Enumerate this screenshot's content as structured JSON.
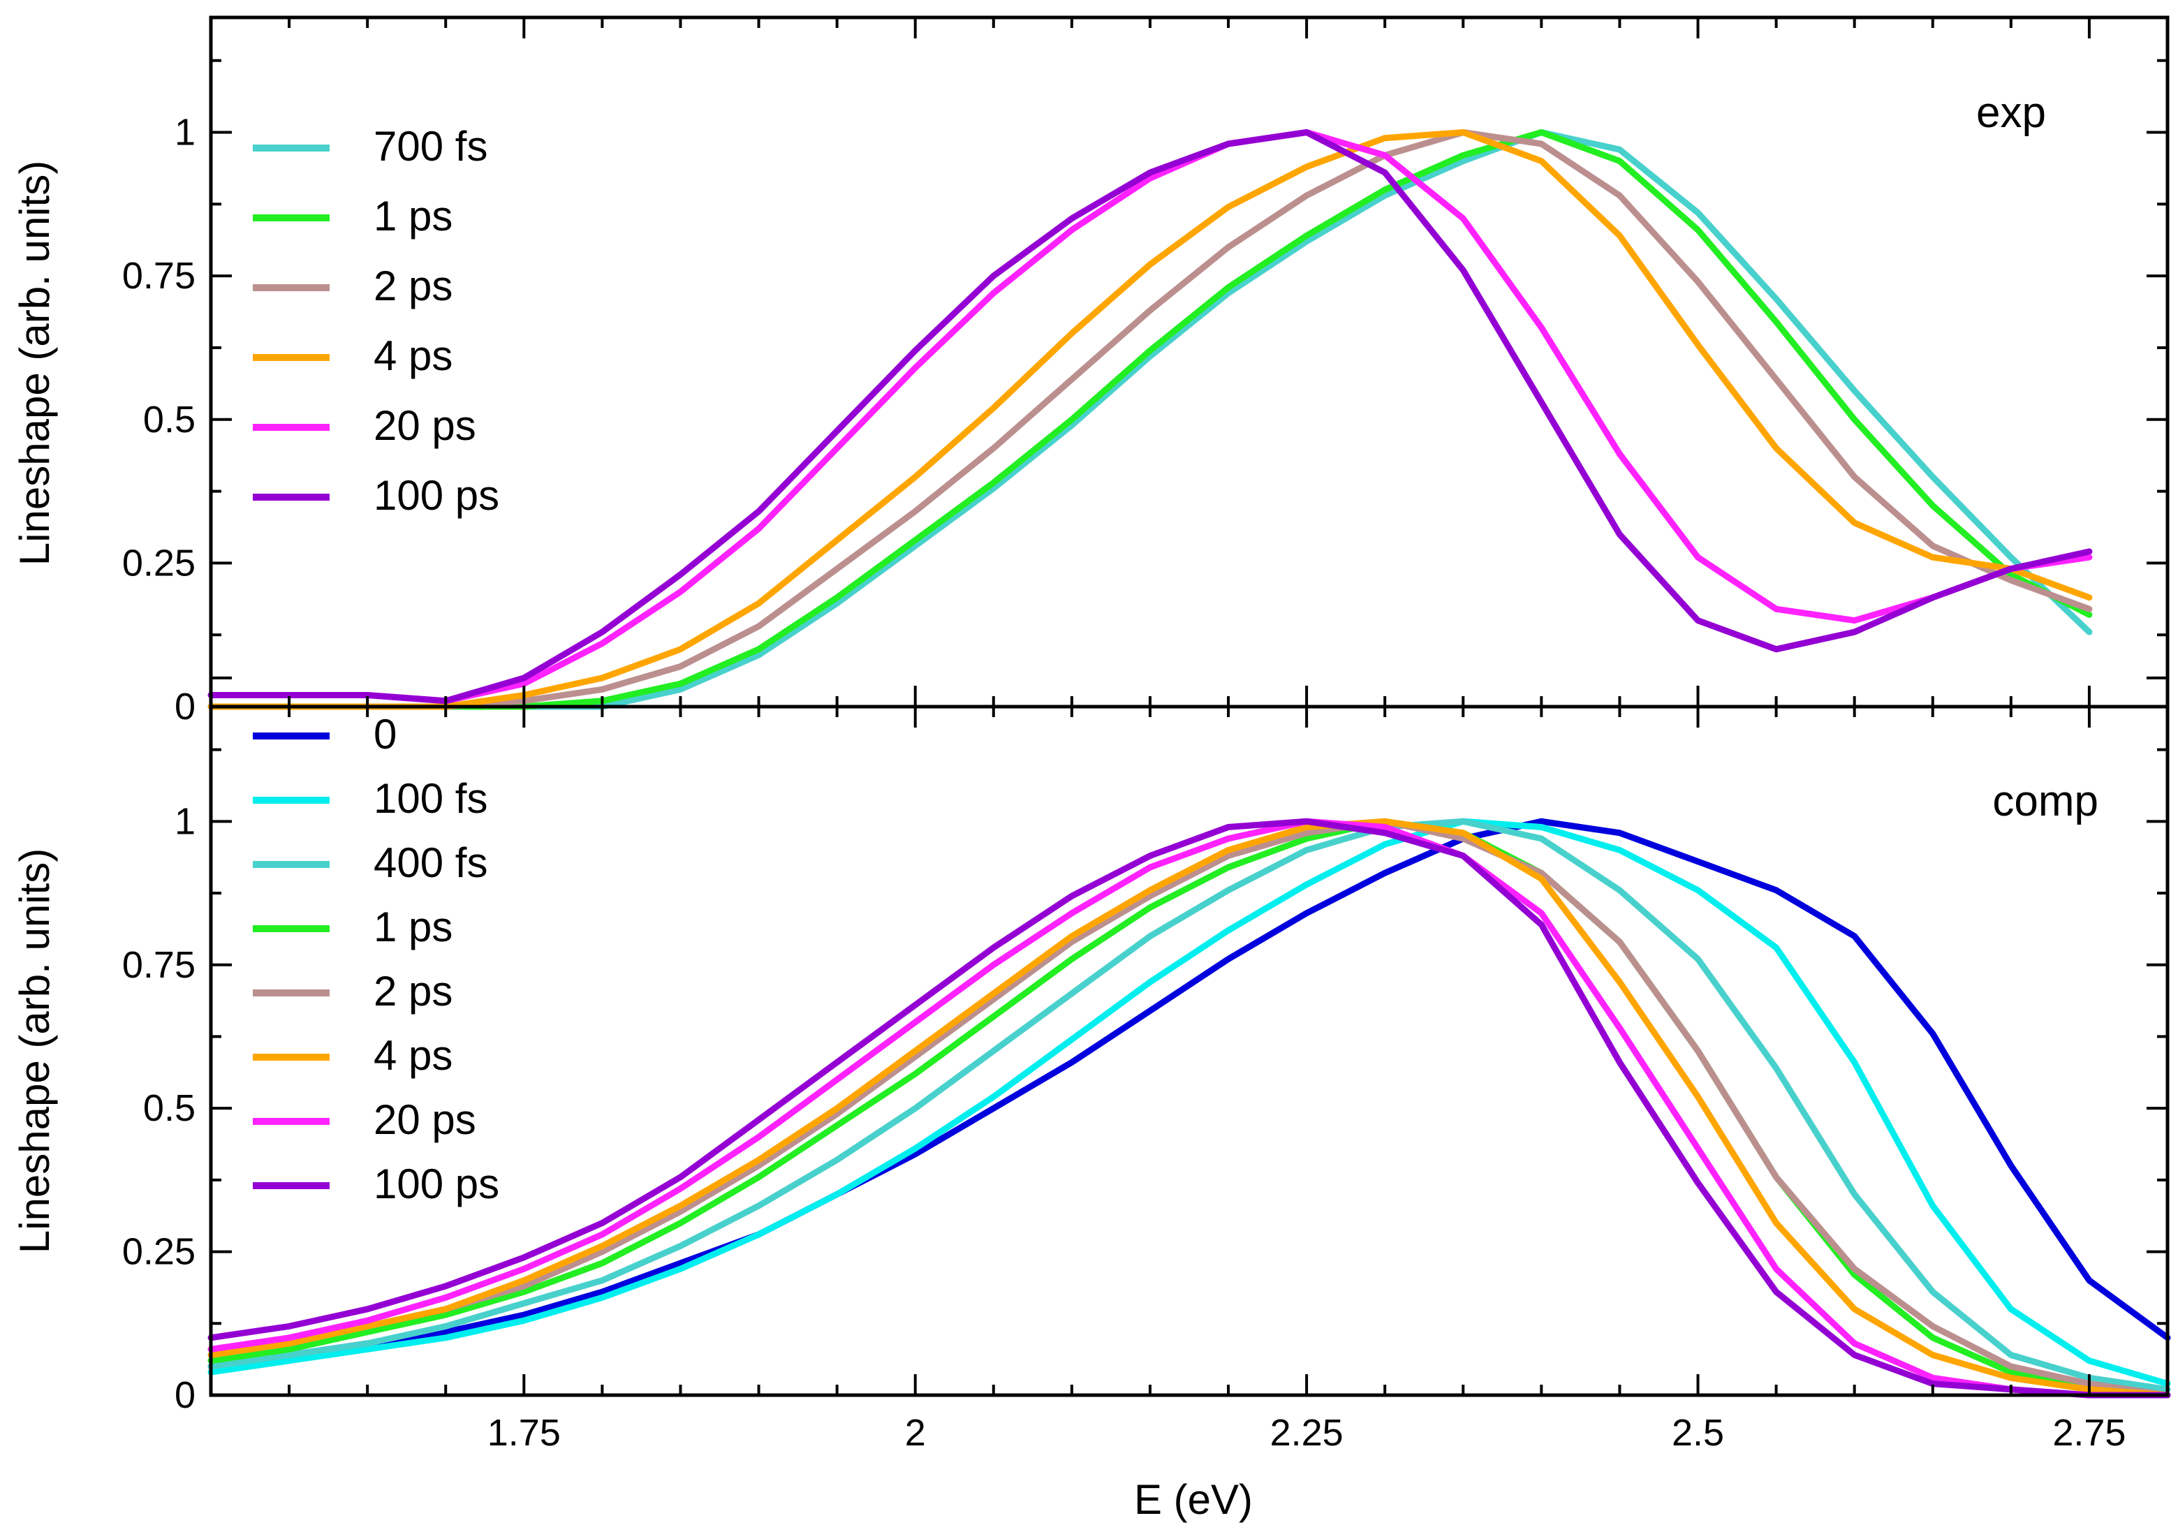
{
  "chart_data": [
    {
      "type": "line",
      "panel": "top",
      "annotation": "exp",
      "xlabel": "E (eV)",
      "ylabel": "Lineshape (arb. units)",
      "xlim": [
        1.55,
        2.8
      ],
      "ylim": [
        0,
        1.2
      ],
      "xticks": [
        "1.75",
        "2",
        "2.25",
        "2.5",
        "2.75"
      ],
      "yticks": [
        "0",
        "0.25",
        "0.5",
        "0.75",
        "1"
      ],
      "legend_position": "top-left",
      "series": [
        {
          "name": "700 fs",
          "color": "#48d1cc",
          "x": [
            1.55,
            1.6,
            1.65,
            1.7,
            1.75,
            1.8,
            1.85,
            1.9,
            1.95,
            2.0,
            2.05,
            2.1,
            2.15,
            2.2,
            2.25,
            2.3,
            2.35,
            2.4,
            2.45,
            2.5,
            2.55,
            2.6,
            2.65,
            2.7,
            2.75
          ],
          "values": [
            0.0,
            0.0,
            0.0,
            0.0,
            0.0,
            0.0,
            0.03,
            0.09,
            0.18,
            0.28,
            0.38,
            0.49,
            0.61,
            0.72,
            0.81,
            0.89,
            0.95,
            1.0,
            0.97,
            0.86,
            0.71,
            0.55,
            0.4,
            0.26,
            0.13
          ]
        },
        {
          "name": "1 ps",
          "color": "#22ee22",
          "x": [
            1.55,
            1.6,
            1.65,
            1.7,
            1.75,
            1.8,
            1.85,
            1.9,
            1.95,
            2.0,
            2.05,
            2.1,
            2.15,
            2.2,
            2.25,
            2.3,
            2.35,
            2.4,
            2.45,
            2.5,
            2.55,
            2.6,
            2.65,
            2.7,
            2.75
          ],
          "values": [
            0.0,
            0.0,
            0.0,
            0.0,
            0.0,
            0.01,
            0.04,
            0.1,
            0.19,
            0.29,
            0.39,
            0.5,
            0.62,
            0.73,
            0.82,
            0.9,
            0.96,
            1.0,
            0.95,
            0.83,
            0.67,
            0.5,
            0.35,
            0.23,
            0.16
          ]
        },
        {
          "name": "2 ps",
          "color": "#bc8f8f",
          "x": [
            1.55,
            1.6,
            1.65,
            1.7,
            1.75,
            1.8,
            1.85,
            1.9,
            1.95,
            2.0,
            2.05,
            2.1,
            2.15,
            2.2,
            2.25,
            2.3,
            2.35,
            2.4,
            2.45,
            2.5,
            2.55,
            2.6,
            2.65,
            2.7,
            2.75
          ],
          "values": [
            0.0,
            0.0,
            0.0,
            0.0,
            0.01,
            0.03,
            0.07,
            0.14,
            0.24,
            0.34,
            0.45,
            0.57,
            0.69,
            0.8,
            0.89,
            0.96,
            1.0,
            0.98,
            0.89,
            0.74,
            0.57,
            0.4,
            0.28,
            0.22,
            0.17
          ]
        },
        {
          "name": "4 ps",
          "color": "#ffa500",
          "x": [
            1.55,
            1.6,
            1.65,
            1.7,
            1.75,
            1.8,
            1.85,
            1.9,
            1.95,
            2.0,
            2.05,
            2.1,
            2.15,
            2.2,
            2.25,
            2.3,
            2.35,
            2.4,
            2.45,
            2.5,
            2.55,
            2.6,
            2.65,
            2.7,
            2.75
          ],
          "values": [
            0.0,
            0.0,
            0.0,
            0.0,
            0.02,
            0.05,
            0.1,
            0.18,
            0.29,
            0.4,
            0.52,
            0.65,
            0.77,
            0.87,
            0.94,
            0.99,
            1.0,
            0.95,
            0.82,
            0.63,
            0.45,
            0.32,
            0.26,
            0.24,
            0.19
          ]
        },
        {
          "name": "20 ps",
          "color": "#ff22ff",
          "x": [
            1.55,
            1.6,
            1.65,
            1.7,
            1.75,
            1.8,
            1.85,
            1.9,
            1.95,
            2.0,
            2.05,
            2.1,
            2.15,
            2.2,
            2.25,
            2.3,
            2.35,
            2.4,
            2.45,
            2.5,
            2.55,
            2.6,
            2.65,
            2.7,
            2.75
          ],
          "values": [
            0.02,
            0.02,
            0.02,
            0.01,
            0.04,
            0.11,
            0.2,
            0.31,
            0.45,
            0.59,
            0.72,
            0.83,
            0.92,
            0.98,
            1.0,
            0.96,
            0.85,
            0.66,
            0.44,
            0.26,
            0.17,
            0.15,
            0.19,
            0.24,
            0.26
          ]
        },
        {
          "name": "100 ps",
          "color": "#9400d3",
          "x": [
            1.55,
            1.6,
            1.65,
            1.7,
            1.75,
            1.8,
            1.85,
            1.9,
            1.95,
            2.0,
            2.05,
            2.1,
            2.15,
            2.2,
            2.25,
            2.3,
            2.35,
            2.4,
            2.45,
            2.5,
            2.55,
            2.6,
            2.65,
            2.7,
            2.75
          ],
          "values": [
            0.02,
            0.02,
            0.02,
            0.01,
            0.05,
            0.13,
            0.23,
            0.34,
            0.48,
            0.62,
            0.75,
            0.85,
            0.93,
            0.98,
            1.0,
            0.93,
            0.76,
            0.53,
            0.3,
            0.15,
            0.1,
            0.13,
            0.19,
            0.24,
            0.27
          ]
        }
      ]
    },
    {
      "type": "line",
      "panel": "bottom",
      "annotation": "comp",
      "xlabel": "E (eV)",
      "ylabel": "Lineshape (arb. units)",
      "xlim": [
        1.55,
        2.8
      ],
      "ylim": [
        0,
        1.2
      ],
      "xticks": [
        "1.75",
        "2",
        "2.25",
        "2.5",
        "2.75"
      ],
      "yticks": [
        "0",
        "0.25",
        "0.5",
        "0.75",
        "1"
      ],
      "legend_position": "top-left",
      "series": [
        {
          "name": "0",
          "color": "#0000dd",
          "x": [
            1.55,
            1.6,
            1.65,
            1.7,
            1.75,
            1.8,
            1.85,
            1.9,
            1.95,
            2.0,
            2.05,
            2.1,
            2.15,
            2.2,
            2.25,
            2.3,
            2.35,
            2.4,
            2.45,
            2.5,
            2.55,
            2.6,
            2.65,
            2.7,
            2.75,
            2.8
          ],
          "values": [
            0.05,
            0.07,
            0.09,
            0.11,
            0.14,
            0.18,
            0.23,
            0.28,
            0.35,
            0.42,
            0.5,
            0.58,
            0.67,
            0.76,
            0.84,
            0.91,
            0.97,
            1.0,
            0.98,
            0.93,
            0.88,
            0.8,
            0.63,
            0.4,
            0.2,
            0.1
          ]
        },
        {
          "name": "100 fs",
          "color": "#00eeee",
          "x": [
            1.55,
            1.6,
            1.65,
            1.7,
            1.75,
            1.8,
            1.85,
            1.9,
            1.95,
            2.0,
            2.05,
            2.1,
            2.15,
            2.2,
            2.25,
            2.3,
            2.35,
            2.4,
            2.45,
            2.5,
            2.55,
            2.6,
            2.65,
            2.7,
            2.75,
            2.8
          ],
          "values": [
            0.04,
            0.06,
            0.08,
            0.1,
            0.13,
            0.17,
            0.22,
            0.28,
            0.35,
            0.43,
            0.52,
            0.62,
            0.72,
            0.81,
            0.89,
            0.96,
            1.0,
            0.99,
            0.95,
            0.88,
            0.78,
            0.58,
            0.33,
            0.15,
            0.06,
            0.02
          ]
        },
        {
          "name": "400 fs",
          "color": "#48d1cc",
          "x": [
            1.55,
            1.6,
            1.65,
            1.7,
            1.75,
            1.8,
            1.85,
            1.9,
            1.95,
            2.0,
            2.05,
            2.1,
            2.15,
            2.2,
            2.25,
            2.3,
            2.35,
            2.4,
            2.45,
            2.5,
            2.55,
            2.6,
            2.65,
            2.7,
            2.75,
            2.8
          ],
          "values": [
            0.05,
            0.07,
            0.09,
            0.12,
            0.16,
            0.2,
            0.26,
            0.33,
            0.41,
            0.5,
            0.6,
            0.7,
            0.8,
            0.88,
            0.95,
            0.99,
            1.0,
            0.97,
            0.88,
            0.76,
            0.57,
            0.35,
            0.18,
            0.07,
            0.03,
            0.01
          ]
        },
        {
          "name": "1 ps",
          "color": "#22ee22",
          "x": [
            1.55,
            1.6,
            1.65,
            1.7,
            1.75,
            1.8,
            1.85,
            1.9,
            1.95,
            2.0,
            2.05,
            2.1,
            2.15,
            2.2,
            2.25,
            2.3,
            2.35,
            2.4,
            2.45,
            2.5,
            2.55,
            2.6,
            2.65,
            2.7,
            2.75,
            2.8
          ],
          "values": [
            0.06,
            0.08,
            0.11,
            0.14,
            0.18,
            0.23,
            0.3,
            0.38,
            0.47,
            0.56,
            0.66,
            0.76,
            0.85,
            0.92,
            0.97,
            1.0,
            0.98,
            0.91,
            0.79,
            0.6,
            0.38,
            0.21,
            0.1,
            0.04,
            0.01,
            0.0
          ]
        },
        {
          "name": "2 ps",
          "color": "#bc8f8f",
          "x": [
            1.55,
            1.6,
            1.65,
            1.7,
            1.75,
            1.8,
            1.85,
            1.9,
            1.95,
            2.0,
            2.05,
            2.1,
            2.15,
            2.2,
            2.25,
            2.3,
            2.35,
            2.4,
            2.45,
            2.5,
            2.55,
            2.6,
            2.65,
            2.7,
            2.75,
            2.8
          ],
          "values": [
            0.07,
            0.09,
            0.12,
            0.15,
            0.19,
            0.25,
            0.32,
            0.4,
            0.49,
            0.59,
            0.69,
            0.79,
            0.87,
            0.94,
            0.98,
            1.0,
            0.97,
            0.91,
            0.79,
            0.6,
            0.38,
            0.22,
            0.12,
            0.05,
            0.02,
            0.0
          ]
        },
        {
          "name": "4 ps",
          "color": "#ffa500",
          "x": [
            1.55,
            1.6,
            1.65,
            1.7,
            1.75,
            1.8,
            1.85,
            1.9,
            1.95,
            2.0,
            2.05,
            2.1,
            2.15,
            2.2,
            2.25,
            2.3,
            2.35,
            2.4,
            2.45,
            2.5,
            2.55,
            2.6,
            2.65,
            2.7,
            2.75,
            2.8
          ],
          "values": [
            0.07,
            0.09,
            0.12,
            0.15,
            0.2,
            0.26,
            0.33,
            0.41,
            0.5,
            0.6,
            0.7,
            0.8,
            0.88,
            0.95,
            0.99,
            1.0,
            0.98,
            0.9,
            0.72,
            0.52,
            0.3,
            0.15,
            0.07,
            0.03,
            0.01,
            0.0
          ]
        },
        {
          "name": "20 ps",
          "color": "#ff22ff",
          "x": [
            1.55,
            1.6,
            1.65,
            1.7,
            1.75,
            1.8,
            1.85,
            1.9,
            1.95,
            2.0,
            2.05,
            2.1,
            2.15,
            2.2,
            2.25,
            2.3,
            2.35,
            2.4,
            2.45,
            2.5,
            2.55,
            2.6,
            2.65,
            2.7,
            2.75,
            2.8
          ],
          "values": [
            0.08,
            0.1,
            0.13,
            0.17,
            0.22,
            0.28,
            0.36,
            0.45,
            0.55,
            0.65,
            0.75,
            0.84,
            0.92,
            0.97,
            1.0,
            0.99,
            0.94,
            0.84,
            0.64,
            0.43,
            0.22,
            0.09,
            0.03,
            0.01,
            0.0,
            0.0
          ]
        },
        {
          "name": "100 ps",
          "color": "#9400d3",
          "x": [
            1.55,
            1.6,
            1.65,
            1.7,
            1.75,
            1.8,
            1.85,
            1.9,
            1.95,
            2.0,
            2.05,
            2.1,
            2.15,
            2.2,
            2.25,
            2.3,
            2.35,
            2.4,
            2.45,
            2.5,
            2.55,
            2.6,
            2.65,
            2.7,
            2.75,
            2.8
          ],
          "values": [
            0.1,
            0.12,
            0.15,
            0.19,
            0.24,
            0.3,
            0.38,
            0.48,
            0.58,
            0.68,
            0.78,
            0.87,
            0.94,
            0.99,
            1.0,
            0.98,
            0.94,
            0.82,
            0.58,
            0.37,
            0.18,
            0.07,
            0.02,
            0.01,
            0.0,
            0.0
          ]
        }
      ]
    }
  ]
}
